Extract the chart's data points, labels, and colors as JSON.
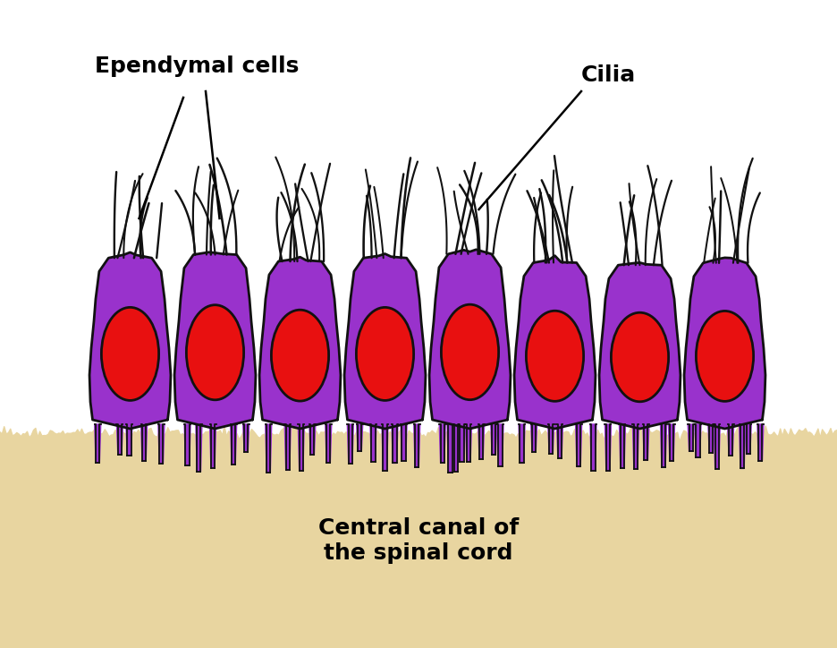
{
  "background_color": "#ffffff",
  "sand_color": "#e8d5a0",
  "cell_fill": "#9932cc",
  "cell_dark": "#6a0dad",
  "nucleus_color": "#e81010",
  "outline_color": "#111111",
  "label_ependymal": "Ependymal cells",
  "label_cilia": "Cilia",
  "label_canal": "Central canal of\nthe spinal cord",
  "num_cells": 8,
  "fig_w": 9.36,
  "fig_h": 7.24,
  "dpi": 100
}
